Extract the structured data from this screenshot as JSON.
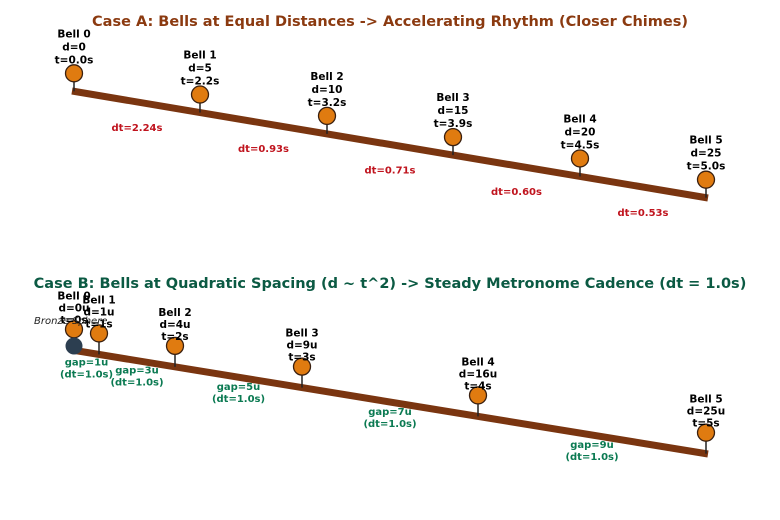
{
  "colors": {
    "title_a": "#8b3a10",
    "title_b": "#0b5a43",
    "beam": "#7a3510",
    "bell_fill": "#e07b10",
    "bell_stroke": "#3a2010",
    "dt_a": "#c0141e",
    "gap_b": "#0b7a52",
    "sphere": "#2c3e50"
  },
  "case_a": {
    "title": "Case A: Bells at Equal Distances -> Accelerating Rhythm (Closer Chimes)",
    "bells": [
      {
        "name": "Bell 0",
        "d": "d=0",
        "t": "t=0.0s"
      },
      {
        "name": "Bell 1",
        "d": "d=5",
        "t": "t=2.2s"
      },
      {
        "name": "Bell 2",
        "d": "d=10",
        "t": "t=3.2s"
      },
      {
        "name": "Bell 3",
        "d": "d=15",
        "t": "t=3.9s"
      },
      {
        "name": "Bell 4",
        "d": "d=20",
        "t": "t=4.5s"
      },
      {
        "name": "Bell 5",
        "d": "d=25",
        "t": "t=5.0s"
      }
    ],
    "intervals": [
      "dt=2.24s",
      "dt=0.93s",
      "dt=0.71s",
      "dt=0.60s",
      "dt=0.53s"
    ]
  },
  "case_b": {
    "title": "Case B: Bells at Quadratic Spacing (d ~ t^2) -> Steady Metronome Cadence (dt = 1.0s)",
    "sphere_label": "Bronze Sphere",
    "bells": [
      {
        "name": "Bell 0",
        "d": "d=0u",
        "t": "t=0s"
      },
      {
        "name": "Bell 1",
        "d": "d=1u",
        "t": "t=1s"
      },
      {
        "name": "Bell 2",
        "d": "d=4u",
        "t": "t=2s"
      },
      {
        "name": "Bell 3",
        "d": "d=9u",
        "t": "t=3s"
      },
      {
        "name": "Bell 4",
        "d": "d=16u",
        "t": "t=4s"
      },
      {
        "name": "Bell 5",
        "d": "d=25u",
        "t": "t=5s"
      }
    ],
    "intervals": [
      {
        "gap": "gap=1u",
        "dt": "(dt=1.0s)"
      },
      {
        "gap": "gap=3u",
        "dt": "(dt=1.0s)"
      },
      {
        "gap": "gap=5u",
        "dt": "(dt=1.0s)"
      },
      {
        "gap": "gap=7u",
        "dt": "(dt=1.0s)"
      },
      {
        "gap": "gap=9u",
        "dt": "(dt=1.0s)"
      }
    ]
  }
}
